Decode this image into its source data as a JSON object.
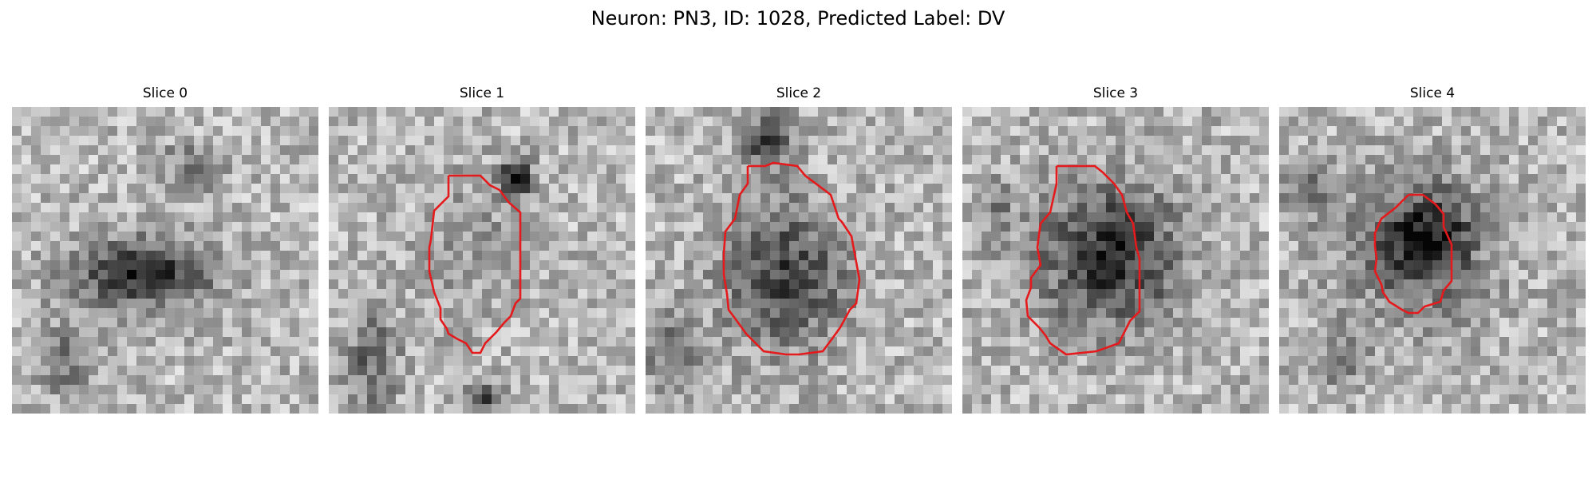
{
  "figure": {
    "title": "Neuron: PN3, ID: 1028, Predicted Label: DV",
    "contour_color": "#e41a1c",
    "colormap": "gray",
    "grid_size": 32
  },
  "slices": [
    {
      "label": "Slice 0",
      "has_contour": false
    },
    {
      "label": "Slice 1",
      "has_contour": true
    },
    {
      "label": "Slice 2",
      "has_contour": true
    },
    {
      "label": "Slice 3",
      "has_contour": true
    },
    {
      "label": "Slice 4",
      "has_contour": true
    }
  ]
}
